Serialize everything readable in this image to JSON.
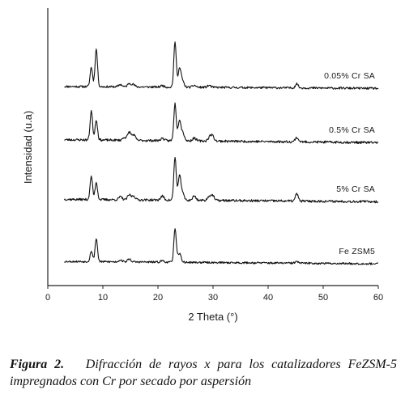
{
  "chart_data": {
    "type": "line",
    "title": "",
    "xlabel": "2 Theta (°)",
    "ylabel": "Intensidad (u.a)",
    "xlim": [
      0,
      60
    ],
    "xticks": [
      "0",
      "10",
      "20",
      "30",
      "40",
      "50",
      "60"
    ],
    "yticks": [],
    "y_units": "arbitrary (stacked offsets)",
    "grid": false,
    "legend": "none (inline labels at right end of each trace)",
    "series": [
      {
        "name": "0.05% Cr SA",
        "offset": 3,
        "x_range": [
          3,
          60
        ],
        "baseline": 0.1,
        "drop_after": 0.03,
        "noise": 0.11,
        "seed": 11,
        "peaks": [
          [
            7.9,
            1.0,
            0.22
          ],
          [
            8.8,
            1.95,
            0.22
          ],
          [
            13.2,
            0.12,
            0.3
          ],
          [
            14.8,
            0.18,
            0.3
          ],
          [
            15.5,
            0.12,
            0.3
          ],
          [
            20.8,
            0.08,
            0.3
          ],
          [
            23.1,
            2.3,
            0.22
          ],
          [
            23.9,
            0.9,
            0.25
          ],
          [
            24.4,
            0.35,
            0.3
          ],
          [
            26.6,
            0.1,
            0.3
          ],
          [
            29.3,
            0.1,
            0.3
          ],
          [
            45.2,
            0.22,
            0.25
          ]
        ]
      },
      {
        "name": "0.5% Cr SA",
        "offset": 2,
        "x_range": [
          3,
          60
        ],
        "baseline": 0.15,
        "drop_after": 0.03,
        "noise": 0.12,
        "seed": 23,
        "peaks": [
          [
            7.9,
            1.5,
            0.22
          ],
          [
            8.8,
            1.05,
            0.22
          ],
          [
            13.9,
            0.15,
            0.3
          ],
          [
            14.8,
            0.42,
            0.3
          ],
          [
            15.6,
            0.28,
            0.3
          ],
          [
            20.8,
            0.12,
            0.3
          ],
          [
            23.1,
            1.9,
            0.22
          ],
          [
            23.9,
            1.05,
            0.25
          ],
          [
            24.5,
            0.42,
            0.3
          ],
          [
            26.6,
            0.15,
            0.3
          ],
          [
            29.4,
            0.2,
            0.3
          ],
          [
            29.9,
            0.25,
            0.3
          ],
          [
            45.2,
            0.22,
            0.3
          ]
        ]
      },
      {
        "name": "5% Cr SA",
        "offset": 1,
        "x_range": [
          3,
          60
        ],
        "baseline": 0.12,
        "drop_after": 0.03,
        "noise": 0.12,
        "seed": 37,
        "peaks": [
          [
            7.9,
            1.2,
            0.22
          ],
          [
            8.8,
            0.9,
            0.22
          ],
          [
            13.2,
            0.15,
            0.3
          ],
          [
            14.8,
            0.25,
            0.3
          ],
          [
            15.6,
            0.2,
            0.3
          ],
          [
            20.8,
            0.2,
            0.3
          ],
          [
            23.1,
            2.2,
            0.22
          ],
          [
            23.9,
            1.15,
            0.25
          ],
          [
            24.4,
            0.4,
            0.3
          ],
          [
            26.6,
            0.22,
            0.3
          ],
          [
            29.3,
            0.2,
            0.3
          ],
          [
            29.9,
            0.25,
            0.3
          ],
          [
            45.2,
            0.38,
            0.25
          ]
        ]
      },
      {
        "name": "Fe ZSM5",
        "offset": 0,
        "x_range": [
          3,
          60
        ],
        "baseline": 0.12,
        "drop_after": 0.04,
        "noise": 0.1,
        "seed": 53,
        "peaks": [
          [
            7.9,
            0.55,
            0.22
          ],
          [
            8.8,
            1.2,
            0.22
          ],
          [
            13.2,
            0.1,
            0.3
          ],
          [
            14.8,
            0.15,
            0.3
          ],
          [
            20.8,
            0.08,
            0.3
          ],
          [
            23.1,
            1.7,
            0.22
          ],
          [
            23.9,
            0.45,
            0.3
          ],
          [
            45.2,
            0.08,
            0.3
          ]
        ]
      }
    ]
  },
  "caption": {
    "lead": "Figura 2.",
    "text": "Difracción de rayos x para los catalizadores FeZSM-5 impregnados con Cr por secado por aspersión"
  }
}
